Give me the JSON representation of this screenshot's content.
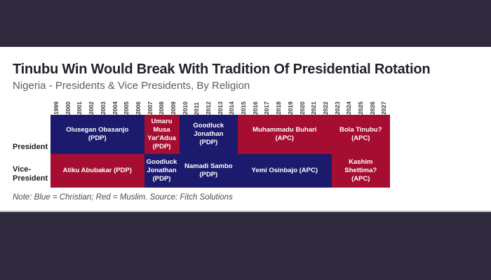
{
  "theme": {
    "bar_color": "#2f2a3e",
    "background": "#ffffff",
    "divider_color": "#b8b8be"
  },
  "header": {
    "title": "Tinubu Win Would Break With Tradition Of Presidential Rotation",
    "subtitle": "Nigeria - Presidents & Vice Presidents, By Religion"
  },
  "note": "Note: Blue = Christian; Red = Muslim. Source: Fitch Solutions",
  "chart_data": {
    "type": "heatmap",
    "title": "Tinubu Win Would Break With Tradition Of Presidential Rotation",
    "subtitle": "Nigeria - Presidents & Vice Presidents, By Religion",
    "x": [
      "1999",
      "2000",
      "2001",
      "2002",
      "2003",
      "2004",
      "2005",
      "2006",
      "2007",
      "2008",
      "2009",
      "2010",
      "2011",
      "2012",
      "2013",
      "2014",
      "2015",
      "2016",
      "2017",
      "2018",
      "2019",
      "2020",
      "2021",
      "2022",
      "2023",
      "2024",
      "2025",
      "2026",
      "2027"
    ],
    "x_range": [
      1999,
      2027
    ],
    "legend": {
      "blue": "Christian",
      "red": "Muslim"
    },
    "colors": {
      "Christian": "#1b1a6d",
      "Muslim": "#a50d31"
    },
    "source": "Fitch Solutions",
    "rows": [
      {
        "label_lines": [
          "President"
        ],
        "segments": [
          {
            "label": "Olusegan Obasanjo (PDP)",
            "lines": [
              "Olusegan Obasanjo",
              "(PDP)"
            ],
            "start": 1999,
            "end": 2007,
            "span": 8,
            "religion": "Christian",
            "party": "PDP"
          },
          {
            "label": "Umaru Musa Yar'Adua (PDP)",
            "lines": [
              "Umaru",
              "Musa",
              "Yar'Adua",
              "(PDP)"
            ],
            "start": 2007,
            "end": 2010,
            "span": 3,
            "religion": "Muslim",
            "party": "PDP"
          },
          {
            "label": "Goodluck Jonathan (PDP)",
            "lines": [
              "Goodluck",
              "Jonathan",
              "(PDP)"
            ],
            "start": 2010,
            "end": 2015,
            "span": 5,
            "religion": "Christian",
            "party": "PDP"
          },
          {
            "label": "Muhammadu Buhari (APC)",
            "lines": [
              "Muhammadu Buhari",
              "(APC)"
            ],
            "start": 2015,
            "end": 2023,
            "span": 8,
            "religion": "Muslim",
            "party": "APC"
          },
          {
            "label": "Bola Tinubu? (APC)",
            "lines": [
              "Bola Tinubu?",
              "(APC)"
            ],
            "start": 2023,
            "end": 2027,
            "span": 5,
            "religion": "Muslim",
            "party": "APC"
          }
        ]
      },
      {
        "label_lines": [
          "Vice-",
          "President"
        ],
        "segments": [
          {
            "label": "Atiku Abubakar (PDP)",
            "lines": [
              "Atiku Abubakar (PDP)"
            ],
            "start": 1999,
            "end": 2007,
            "span": 8,
            "religion": "Muslim",
            "party": "PDP"
          },
          {
            "label": "Goodluck Jonathan (PDP)",
            "lines": [
              "Goodluck",
              "Jonathan",
              "(PDP)"
            ],
            "start": 2007,
            "end": 2010,
            "span": 3,
            "religion": "Christian",
            "party": "PDP"
          },
          {
            "label": "Namadi Sambo (PDP)",
            "lines": [
              "Namadi Sambo",
              "(PDP)"
            ],
            "start": 2010,
            "end": 2015,
            "span": 5,
            "religion": "Christian",
            "party": "PDP"
          },
          {
            "label": "Yemi Osinbajo (APC)",
            "lines": [
              "Yemi Osinbajo (APC)"
            ],
            "start": 2015,
            "end": 2023,
            "span": 8,
            "religion": "Christian",
            "party": "APC"
          },
          {
            "label": "Kashim Shettima? (APC)",
            "lines": [
              "Kashim",
              "Shettima?",
              "(APC)"
            ],
            "start": 2023,
            "end": 2027,
            "span": 5,
            "religion": "Muslim",
            "party": "APC"
          }
        ]
      }
    ]
  }
}
